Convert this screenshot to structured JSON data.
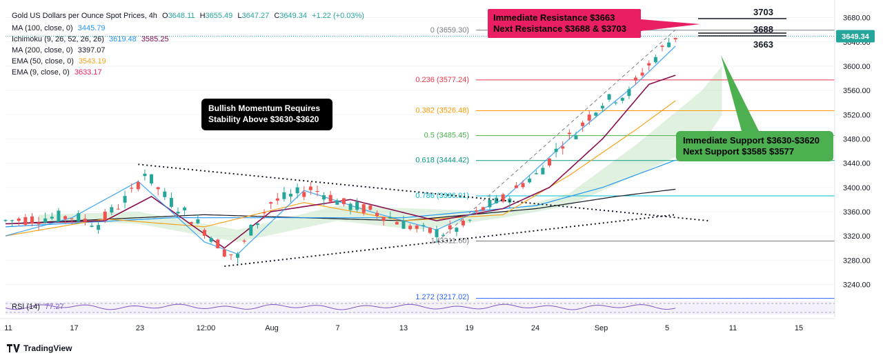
{
  "header": {
    "title": "Gold US Dollars per Ounce Spot Prices, 4h",
    "open_label": "O",
    "open": "3648.11",
    "high_label": "H",
    "high": "3655.49",
    "low_label": "L",
    "low": "3647.27",
    "close_label": "C",
    "close": "3649.34",
    "change": "+1.22 (+0.03%)"
  },
  "indicators": [
    {
      "label": "MA (100, close, 0)",
      "values": [
        "3445.79"
      ],
      "color": "#2196f3"
    },
    {
      "label": "Ichimoku (9, 26, 52, 26, 26)",
      "values": [
        "3619.48",
        "3585.25"
      ],
      "color": "#2196f3",
      "color2": "#880e4f"
    },
    {
      "label": "MA (200, close, 0)",
      "values": [
        "3397.07"
      ],
      "color": "#131722"
    },
    {
      "label": "EMA (50, close, 0)",
      "values": [
        "3543.19"
      ],
      "color": "#f7a21b"
    },
    {
      "label": "EMA (9, close, 0)",
      "values": [
        "3633.17"
      ],
      "color": "#e91e63"
    }
  ],
  "callouts": {
    "bullish": "Bullish Momentum Requires Stability Above $3630-$3620",
    "resistance_line1": "Immediate Resistance $3663",
    "resistance_line2": "Next Resistance $3688 & $3703",
    "support_line1": "Immediate Support $3630-$3620",
    "support_line2": "Next Support $3585 $3577"
  },
  "levels": {
    "r3": "3703",
    "r2": "3688",
    "r1": "3663"
  },
  "oscillator": {
    "label": "RSI (14)",
    "value": "77.27"
  },
  "branding": {
    "name": "TradingView"
  },
  "colors": {
    "up": "#26a69a",
    "down": "#ef5350",
    "resistance": "#e91e63",
    "support": "#4caf50"
  },
  "chart_data": {
    "type": "candlestick",
    "title": "Gold US Dollars per Ounce Spot Prices, 4h",
    "y_ticks": [
      3240,
      3280,
      3320,
      3360,
      3400,
      3440,
      3480,
      3520,
      3560,
      3600,
      3640,
      3680
    ],
    "y_range": [
      3220,
      3700
    ],
    "last_price": 3649.34,
    "x_ticks": [
      "11",
      "17",
      "23",
      "12:00",
      "Aug",
      "7",
      "13",
      "19",
      "24",
      "Sep",
      "5",
      "11",
      "15"
    ],
    "fibonacci": [
      {
        "label": "0 (3659.30)",
        "value": 3659.3,
        "color": "#787b86"
      },
      {
        "label": "0.236 (3577.24)",
        "value": 3577.24,
        "color": "#f23645"
      },
      {
        "label": "0.382 (3526.48)",
        "value": 3526.48,
        "color": "#ff9800"
      },
      {
        "label": "0.5 (3485.45)",
        "value": 3485.45,
        "color": "#4caf50"
      },
      {
        "label": "0.618 (3444.42)",
        "value": 3444.42,
        "color": "#089981"
      },
      {
        "label": "0.786 (3386.01)",
        "value": 3386.01,
        "color": "#00bcd4"
      },
      {
        "label": "1 (3311.60)",
        "value": 3311.6,
        "color": "#787b86"
      },
      {
        "label": "1.272 (3217.02)",
        "value": 3217.02,
        "color": "#2962ff"
      }
    ],
    "price_path": [
      [
        0,
        3345
      ],
      [
        6,
        3350
      ],
      [
        10,
        3352
      ],
      [
        14,
        3340
      ],
      [
        19,
        3390
      ],
      [
        21,
        3425
      ],
      [
        24,
        3385
      ],
      [
        28,
        3350
      ],
      [
        31,
        3320
      ],
      [
        33,
        3295
      ],
      [
        35,
        3285
      ],
      [
        37,
        3330
      ],
      [
        40,
        3375
      ],
      [
        43,
        3385
      ],
      [
        46,
        3398
      ],
      [
        48,
        3390
      ],
      [
        51,
        3372
      ],
      [
        54,
        3365
      ],
      [
        57,
        3355
      ],
      [
        60,
        3340
      ],
      [
        63,
        3328
      ],
      [
        66,
        3325
      ],
      [
        69,
        3335
      ],
      [
        72,
        3365
      ],
      [
        74,
        3375
      ],
      [
        76,
        3385
      ],
      [
        78,
        3408
      ],
      [
        80,
        3420
      ],
      [
        82,
        3445
      ],
      [
        84,
        3475
      ],
      [
        86,
        3490
      ],
      [
        88,
        3518
      ],
      [
        90,
        3540
      ],
      [
        92,
        3548
      ],
      [
        94,
        3555
      ],
      [
        96,
        3590
      ],
      [
        98,
        3615
      ],
      [
        100,
        3640
      ],
      [
        101,
        3649
      ]
    ],
    "ma_200": [
      [
        0,
        3340
      ],
      [
        30,
        3355
      ],
      [
        60,
        3345
      ],
      [
        80,
        3365
      ],
      [
        92,
        3385
      ],
      [
        101,
        3397
      ]
    ],
    "ma_100": [
      [
        0,
        3335
      ],
      [
        25,
        3350
      ],
      [
        60,
        3350
      ],
      [
        80,
        3370
      ],
      [
        90,
        3400
      ],
      [
        101,
        3445
      ]
    ],
    "ema_50": [
      [
        0,
        3320
      ],
      [
        15,
        3348
      ],
      [
        30,
        3335
      ],
      [
        45,
        3375
      ],
      [
        60,
        3345
      ],
      [
        75,
        3355
      ],
      [
        85,
        3420
      ],
      [
        95,
        3495
      ],
      [
        101,
        3543
      ]
    ],
    "ema_9": [
      [
        0,
        3320
      ],
      [
        10,
        3350
      ],
      [
        20,
        3410
      ],
      [
        30,
        3310
      ],
      [
        35,
        3290
      ],
      [
        45,
        3395
      ],
      [
        55,
        3360
      ],
      [
        65,
        3330
      ],
      [
        75,
        3380
      ],
      [
        85,
        3480
      ],
      [
        95,
        3570
      ],
      [
        101,
        3633
      ]
    ],
    "kijun": [
      [
        0,
        3340
      ],
      [
        15,
        3345
      ],
      [
        22,
        3385
      ],
      [
        33,
        3300
      ],
      [
        40,
        3360
      ],
      [
        52,
        3380
      ],
      [
        65,
        3345
      ],
      [
        75,
        3365
      ],
      [
        82,
        3400
      ],
      [
        90,
        3480
      ],
      [
        97,
        3570
      ],
      [
        101,
        3585
      ]
    ],
    "trendlines": {
      "upper": [
        [
          20,
          3438
        ],
        [
          106,
          3345
        ]
      ],
      "lower": [
        [
          33,
          3270
        ],
        [
          101,
          3355
        ]
      ],
      "channel": [
        [
          65,
          3310
        ],
        [
          101,
          3660
        ]
      ]
    },
    "rsi_value": 77.27
  }
}
